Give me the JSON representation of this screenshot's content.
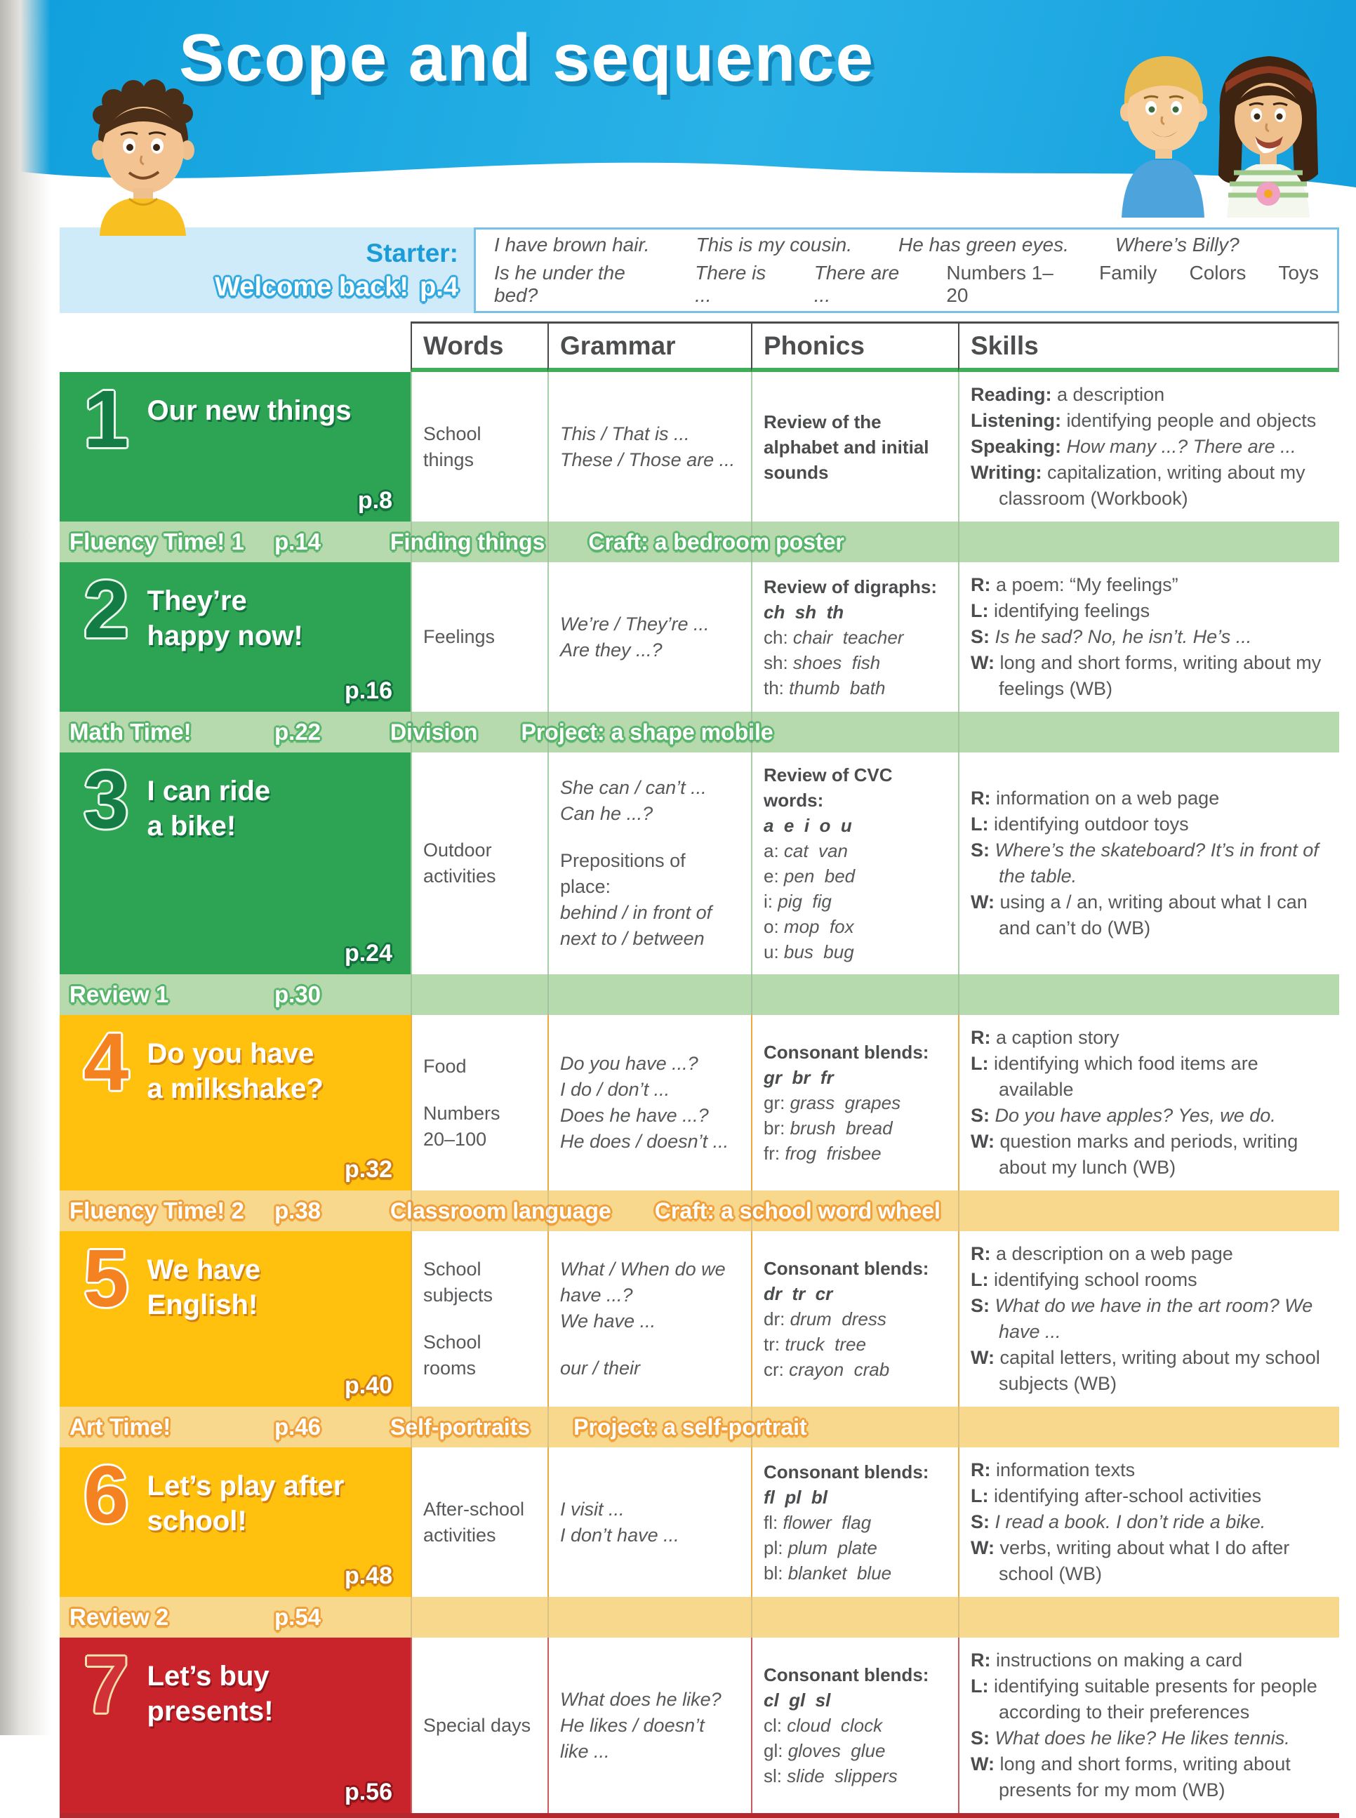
{
  "page": {
    "title": "Scope and sequence"
  },
  "colors": {
    "header_blue": "#14a5e3",
    "starter_blue": "#cfeaf8",
    "starter_accent": "#1b9bd7",
    "unit_green": "#2ca454",
    "band_green": "#b6d9ae",
    "unit_yellow": "#ffc10d",
    "band_yellow": "#f8d88c",
    "unit_red": "#c9242b",
    "header_underline_green": "#3fae57"
  },
  "starter": {
    "label": "Starter:",
    "sublabel": "Welcome back!",
    "page_ref": "p.4",
    "line1": [
      {
        "t": "I have brown hair.",
        "s": "i"
      },
      {
        "t": "This is my cousin.",
        "s": "i"
      },
      {
        "t": "He has green eyes.",
        "s": "i"
      },
      {
        "t": "Where’s Billy?",
        "s": "i"
      }
    ],
    "line2": [
      {
        "t": "Is he under the bed?",
        "s": "i"
      },
      {
        "t": "There is ...",
        "s": "i"
      },
      {
        "t": "There are ...",
        "s": "i"
      },
      {
        "t": "Numbers 1–20",
        "s": "r"
      },
      {
        "t": "Family",
        "s": "r"
      },
      {
        "t": "Colors",
        "s": "r"
      },
      {
        "t": "Toys",
        "s": "r"
      }
    ]
  },
  "table": {
    "headers": [
      "Words",
      "Grammar",
      "Phonics",
      "Skills"
    ],
    "rows": [
      {
        "type": "unit",
        "theme": "green",
        "number": "1",
        "title": [
          "Our new things"
        ],
        "page_ref": "p.8",
        "words": [
          [
            {
              "t": "School things"
            }
          ]
        ],
        "grammar": [
          [
            {
              "t": "This / That is ...",
              "s": "i"
            }
          ],
          [
            {
              "t": "These / Those are ...",
              "s": "i"
            }
          ]
        ],
        "phonics": [
          [
            {
              "t": "Review of the",
              "s": "b"
            }
          ],
          [
            {
              "t": "alphabet and initial",
              "s": "b"
            }
          ],
          [
            {
              "t": "sounds",
              "s": "b"
            }
          ]
        ],
        "skills": [
          {
            "label": "Reading:",
            "t": "a description"
          },
          {
            "label": "Listening:",
            "t": "identifying people and objects"
          },
          {
            "label": "Speaking:",
            "t": "How many ...? There are ...",
            "s": "i"
          },
          {
            "label": "Writing:",
            "t": "capitalization, writing about my classroom (Workbook)"
          }
        ]
      },
      {
        "type": "band",
        "theme": "green",
        "label": "Fluency Time! 1",
        "page_ref": "p.14",
        "mid": "Finding things",
        "right": "Craft: a bedroom poster"
      },
      {
        "type": "unit",
        "theme": "green",
        "number": "2",
        "title": [
          "They’re",
          "happy now!"
        ],
        "page_ref": "p.16",
        "words": [
          [
            {
              "t": "Feelings"
            }
          ]
        ],
        "grammar": [
          [
            {
              "t": "We’re / They’re ...",
              "s": "i"
            }
          ],
          [
            {
              "t": "Are they ...?",
              "s": "i"
            }
          ]
        ],
        "phonics": [
          [
            {
              "t": "Review of digraphs:",
              "s": "b"
            }
          ],
          [
            {
              "t": "ch  sh  th",
              "s": "bi"
            }
          ],
          [
            {
              "t": "ch: ",
              "s": "r"
            },
            {
              "t": "chair  teacher",
              "s": "i"
            }
          ],
          [
            {
              "t": "sh: ",
              "s": "r"
            },
            {
              "t": "shoes  fish",
              "s": "i"
            }
          ],
          [
            {
              "t": "th: ",
              "s": "r"
            },
            {
              "t": "thumb  bath",
              "s": "i"
            }
          ]
        ],
        "skills": [
          {
            "label": "R:",
            "t": "a poem: “My feelings”"
          },
          {
            "label": "L:",
            "t": "identifying feelings"
          },
          {
            "label": "S:",
            "t": "Is he sad? No, he isn’t. He’s ...",
            "s": "i"
          },
          {
            "label": "W:",
            "t": "long and short forms, writing about my feelings (WB)"
          }
        ]
      },
      {
        "type": "band",
        "theme": "green",
        "label": "Math Time!",
        "page_ref": "p.22",
        "mid": "Division",
        "right": "Project: a shape mobile"
      },
      {
        "type": "unit",
        "theme": "green",
        "number": "3",
        "title": [
          "I can ride",
          "a bike!"
        ],
        "page_ref": "p.24",
        "words": [
          [
            {
              "t": "Outdoor"
            }
          ],
          [
            {
              "t": "activities"
            }
          ]
        ],
        "grammar": [
          [
            {
              "t": "She can / can’t ...",
              "s": "i"
            }
          ],
          [
            {
              "t": "Can he ...?",
              "s": "i"
            }
          ],
          {
            "gap": true
          },
          [
            {
              "t": "Prepositions of place:",
              "s": "r"
            }
          ],
          [
            {
              "t": "behind / in front of",
              "s": "i"
            }
          ],
          [
            {
              "t": "next to / between",
              "s": "i"
            }
          ]
        ],
        "phonics": [
          [
            {
              "t": "Review of CVC words:",
              "s": "b"
            }
          ],
          [
            {
              "t": "a  e  i  o  u",
              "s": "bi"
            }
          ],
          [
            {
              "t": "a: ",
              "s": "r"
            },
            {
              "t": "cat  van",
              "s": "i"
            }
          ],
          [
            {
              "t": "e: ",
              "s": "r"
            },
            {
              "t": "pen  bed",
              "s": "i"
            }
          ],
          [
            {
              "t": "i: ",
              "s": "r"
            },
            {
              "t": "pig  fig",
              "s": "i"
            }
          ],
          [
            {
              "t": "o: ",
              "s": "r"
            },
            {
              "t": "mop  fox",
              "s": "i"
            }
          ],
          [
            {
              "t": "u: ",
              "s": "r"
            },
            {
              "t": "bus  bug",
              "s": "i"
            }
          ]
        ],
        "skills": [
          {
            "label": "R:",
            "t": "information on a web page"
          },
          {
            "label": "L:",
            "t": "identifying outdoor toys"
          },
          {
            "label": "S:",
            "t": "Where’s the skateboard? It’s in front of the table.",
            "s": "i"
          },
          {
            "label": "W:",
            "t": "using a / an, writing about what I can and can’t do (WB)"
          }
        ]
      },
      {
        "type": "band",
        "theme": "green",
        "label": "Review 1",
        "page_ref": "p.30",
        "mid": "",
        "right": ""
      },
      {
        "type": "unit",
        "theme": "yellow",
        "number": "4",
        "title": [
          "Do you have",
          "a milkshake?"
        ],
        "page_ref": "p.32",
        "words": [
          [
            {
              "t": "Food"
            }
          ],
          {
            "gap": true
          },
          [
            {
              "t": "Numbers"
            }
          ],
          [
            {
              "t": "20–100"
            }
          ]
        ],
        "grammar": [
          [
            {
              "t": "Do you have ...?",
              "s": "i"
            }
          ],
          [
            {
              "t": "I do / don’t ...",
              "s": "i"
            }
          ],
          [
            {
              "t": "Does he have ...?",
              "s": "i"
            }
          ],
          [
            {
              "t": "He does / doesn’t ...",
              "s": "i"
            }
          ]
        ],
        "phonics": [
          [
            {
              "t": "Consonant blends:",
              "s": "b"
            }
          ],
          [
            {
              "t": "gr  br  fr",
              "s": "bi"
            }
          ],
          [
            {
              "t": "gr: ",
              "s": "r"
            },
            {
              "t": "grass  grapes",
              "s": "i"
            }
          ],
          [
            {
              "t": "br: ",
              "s": "r"
            },
            {
              "t": "brush  bread",
              "s": "i"
            }
          ],
          [
            {
              "t": "fr: ",
              "s": "r"
            },
            {
              "t": "frog  frisbee",
              "s": "i"
            }
          ]
        ],
        "skills": [
          {
            "label": "R:",
            "t": "a caption story"
          },
          {
            "label": "L:",
            "t": "identifying which food items are available"
          },
          {
            "label": "S:",
            "t": "Do you have apples? Yes, we do.",
            "s": "i"
          },
          {
            "label": "W:",
            "t": "question marks and periods, writing about my lunch (WB)"
          }
        ]
      },
      {
        "type": "band",
        "theme": "yellow",
        "label": "Fluency Time! 2",
        "page_ref": "p.38",
        "mid": "Classroom language",
        "right": "Craft: a school word wheel"
      },
      {
        "type": "unit",
        "theme": "yellow",
        "number": "5",
        "title": [
          "We have",
          "English!"
        ],
        "page_ref": "p.40",
        "words": [
          [
            {
              "t": "School"
            }
          ],
          [
            {
              "t": "subjects"
            }
          ],
          {
            "gap": true
          },
          [
            {
              "t": "School rooms"
            }
          ]
        ],
        "grammar": [
          [
            {
              "t": "What / When do we",
              "s": "i"
            }
          ],
          [
            {
              "t": "have ...?",
              "s": "i"
            }
          ],
          [
            {
              "t": "We have ...",
              "s": "i"
            }
          ],
          {
            "gap": true
          },
          [
            {
              "t": "our / their",
              "s": "i"
            }
          ]
        ],
        "phonics": [
          [
            {
              "t": "Consonant blends:",
              "s": "b"
            }
          ],
          [
            {
              "t": "dr  tr  cr",
              "s": "bi"
            }
          ],
          [
            {
              "t": "dr: ",
              "s": "r"
            },
            {
              "t": "drum  dress",
              "s": "i"
            }
          ],
          [
            {
              "t": "tr: ",
              "s": "r"
            },
            {
              "t": "truck  tree",
              "s": "i"
            }
          ],
          [
            {
              "t": "cr: ",
              "s": "r"
            },
            {
              "t": "crayon  crab",
              "s": "i"
            }
          ]
        ],
        "skills": [
          {
            "label": "R:",
            "t": "a description on a web page"
          },
          {
            "label": "L:",
            "t": "identifying school rooms"
          },
          {
            "label": "S:",
            "t": "What do we have in the art room? We have ...",
            "s": "i"
          },
          {
            "label": "W:",
            "t": "capital letters, writing about my school subjects (WB)"
          }
        ]
      },
      {
        "type": "band",
        "theme": "yellow",
        "label": "Art Time!",
        "page_ref": "p.46",
        "mid": "Self-portraits",
        "right": "Project: a self-portrait"
      },
      {
        "type": "unit",
        "theme": "yellow",
        "number": "6",
        "title": [
          "Let’s play after",
          "school!"
        ],
        "page_ref": "p.48",
        "words": [
          [
            {
              "t": "After-school"
            }
          ],
          [
            {
              "t": "activities"
            }
          ]
        ],
        "grammar": [
          [
            {
              "t": "I visit ...",
              "s": "i"
            }
          ],
          [
            {
              "t": "I don’t have ...",
              "s": "i"
            }
          ]
        ],
        "phonics": [
          [
            {
              "t": "Consonant blends:",
              "s": "b"
            }
          ],
          [
            {
              "t": "fl  pl  bl",
              "s": "bi"
            }
          ],
          [
            {
              "t": "fl: ",
              "s": "r"
            },
            {
              "t": "flower  flag",
              "s": "i"
            }
          ],
          [
            {
              "t": "pl: ",
              "s": "r"
            },
            {
              "t": "plum  plate",
              "s": "i"
            }
          ],
          [
            {
              "t": "bl: ",
              "s": "r"
            },
            {
              "t": "blanket  blue",
              "s": "i"
            }
          ]
        ],
        "skills": [
          {
            "label": "R:",
            "t": "information texts"
          },
          {
            "label": "L:",
            "t": "identifying after-school activities"
          },
          {
            "label": "S:",
            "t": "I read a book. I don’t ride a bike.",
            "s": "i"
          },
          {
            "label": "W:",
            "t": "verbs, writing about what I do after school (WB)"
          }
        ]
      },
      {
        "type": "band",
        "theme": "yellow",
        "label": "Review 2",
        "page_ref": "p.54",
        "mid": "",
        "right": ""
      },
      {
        "type": "unit",
        "theme": "red",
        "number": "7",
        "title": [
          "Let’s buy",
          "presents!"
        ],
        "page_ref": "p.56",
        "words": [
          [
            {
              "t": "Special days"
            }
          ]
        ],
        "grammar": [
          [
            {
              "t": "What does he like?",
              "s": "i"
            }
          ],
          [
            {
              "t": "He likes / doesn’t",
              "s": "i"
            }
          ],
          [
            {
              "t": "like ...",
              "s": "i"
            }
          ]
        ],
        "phonics": [
          [
            {
              "t": "Consonant blends:",
              "s": "b"
            }
          ],
          [
            {
              "t": "cl  gl  sl",
              "s": "bi"
            }
          ],
          [
            {
              "t": "cl: ",
              "s": "r"
            },
            {
              "t": "cloud  clock",
              "s": "i"
            }
          ],
          [
            {
              "t": "gl: ",
              "s": "r"
            },
            {
              "t": "gloves  glue",
              "s": "i"
            }
          ],
          [
            {
              "t": "sl: ",
              "s": "r"
            },
            {
              "t": "slide  slippers",
              "s": "i"
            }
          ]
        ],
        "skills": [
          {
            "label": "R:",
            "t": "instructions on making a card"
          },
          {
            "label": "L:",
            "t": "identifying suitable presents for people according to their preferences"
          },
          {
            "label": "S:",
            "t": "What does he like? He likes tennis.",
            "s": "i"
          },
          {
            "label": "W:",
            "t": "long and short forms, writing about presents for my mom (WB)"
          }
        ]
      }
    ]
  }
}
